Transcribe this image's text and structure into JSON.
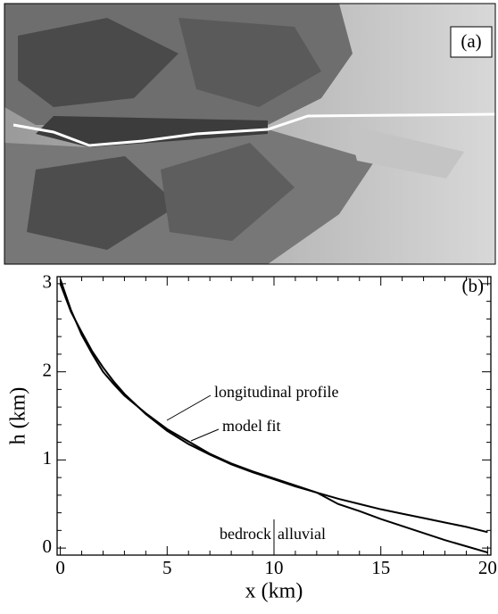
{
  "image_panel": {
    "label": "(a)"
  },
  "chart_data": {
    "type": "line",
    "panel_label": "(b)",
    "xlabel": "x (km)",
    "ylabel": "h (km)",
    "xlim": [
      -0.15,
      20.15
    ],
    "ylim": [
      -0.08,
      3.08
    ],
    "xticks": [
      0,
      5,
      10,
      15,
      20
    ],
    "yticks": [
      0,
      1,
      2,
      3
    ],
    "xminorticks": [
      1,
      2,
      3,
      4,
      6,
      7,
      8,
      9,
      11,
      12,
      13,
      14,
      16,
      17,
      18,
      19
    ],
    "yminorticks": [
      0.2,
      0.4,
      0.6,
      0.8,
      1.2,
      1.4,
      1.6,
      1.8,
      2.2,
      2.4,
      2.6,
      2.8
    ],
    "annotations": [
      "bedrock",
      "alluvial"
    ],
    "x": [
      0,
      0.5,
      1,
      1.5,
      2,
      2.5,
      3,
      4,
      5,
      6,
      7,
      8,
      9,
      10,
      11,
      12,
      13,
      14,
      15,
      16,
      17,
      18,
      19,
      20
    ],
    "series": [
      {
        "name": "longitudinal profile",
        "color": "#000000",
        "values": [
          3.05,
          2.7,
          2.42,
          2.2,
          2.0,
          1.86,
          1.73,
          1.53,
          1.35,
          1.21,
          1.07,
          0.96,
          0.87,
          0.79,
          0.71,
          0.63,
          0.5,
          0.42,
          0.33,
          0.25,
          0.17,
          0.09,
          0.02,
          -0.05
        ]
      },
      {
        "name": "model fit",
        "color": "#000000",
        "values": [
          3.0,
          2.68,
          2.45,
          2.23,
          2.05,
          1.89,
          1.75,
          1.52,
          1.33,
          1.18,
          1.06,
          0.95,
          0.86,
          0.78,
          0.7,
          0.63,
          0.56,
          0.5,
          0.44,
          0.39,
          0.34,
          0.29,
          0.24,
          0.18
        ]
      }
    ]
  }
}
